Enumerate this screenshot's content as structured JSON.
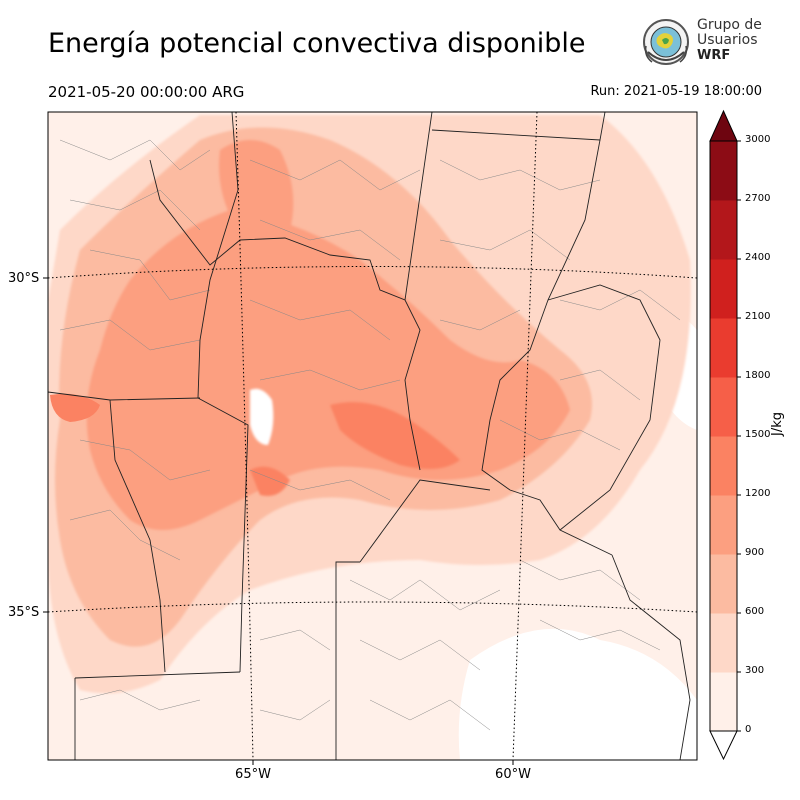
{
  "header": {
    "title": "Energía potencial convectiva disponible",
    "valid_time": "2021-05-20 00:00:00 ARG",
    "run_time": "Run: 2021-05-19 18:00:00"
  },
  "logo": {
    "line1": "Grupo de",
    "line2": "Usuarios",
    "line3": "WRF"
  },
  "map": {
    "variable": "CAPE",
    "lat_labels": [
      "30°S",
      "35°S"
    ],
    "lon_labels": [
      "65°W",
      "60°W"
    ]
  },
  "colorbar": {
    "unit": "J/kg",
    "ticks": [
      "0",
      "300",
      "600",
      "900",
      "1200",
      "1500",
      "1800",
      "2100",
      "2400",
      "2700",
      "3000"
    ],
    "colors": [
      "#fff0e9",
      "#fed8c8",
      "#fcbba1",
      "#fc9f80",
      "#fb8262",
      "#f65f48",
      "#ea3c2f",
      "#d0201e",
      "#b3171b",
      "#8c0c15",
      "#6e0510"
    ],
    "extend": "max"
  }
}
